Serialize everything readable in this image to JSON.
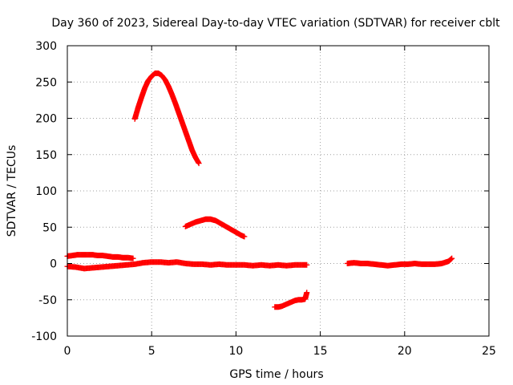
{
  "chart_data": {
    "type": "scatter",
    "title": "Day 360 of 2023, Sidereal Day-to-day VTEC variation (SDTVAR) for receiver cblt",
    "xlabel": "GPS time / hours",
    "ylabel": "SDTVAR / TECUs",
    "xlim": [
      0,
      25
    ],
    "ylim": [
      -100,
      300
    ],
    "xticks": [
      0,
      5,
      10,
      15,
      20,
      25
    ],
    "yticks": [
      -100,
      -50,
      0,
      50,
      100,
      150,
      200,
      250,
      300
    ],
    "grid": true,
    "legend": "none",
    "marker": "+",
    "color": "#ff0000",
    "series": [
      {
        "x": [
          4.0,
          4.2,
          4.4,
          4.6,
          4.8,
          5.0,
          5.2,
          5.4,
          5.6,
          5.8,
          6.0,
          6.2,
          6.4,
          6.6,
          6.8,
          7.0,
          7.2,
          7.4,
          7.6,
          7.8
        ],
        "y": [
          199,
          215,
          229,
          242,
          252,
          258,
          262,
          262,
          259,
          253,
          244,
          233,
          221,
          208,
          195,
          182,
          169,
          156,
          146,
          138
        ]
      },
      {
        "x": [
          7.0,
          7.3,
          7.6,
          7.9,
          8.2,
          8.5,
          8.8,
          9.1,
          9.4,
          9.7,
          10.0,
          10.3,
          10.5
        ],
        "y": [
          51,
          54,
          57,
          59,
          61,
          61,
          59,
          55,
          51,
          47,
          43,
          39,
          37
        ]
      },
      {
        "x": [
          0.0,
          0.3,
          0.6,
          0.9,
          1.2,
          1.5,
          1.8,
          2.1,
          2.4,
          2.7,
          3.0,
          3.3,
          3.6,
          3.9
        ],
        "y": [
          10,
          11,
          12,
          12,
          12,
          12,
          11,
          11,
          10,
          9,
          9,
          8,
          8,
          7
        ]
      },
      {
        "x": [
          0.0,
          0.5,
          1.0,
          1.5,
          2.0,
          2.5,
          3.0,
          3.5,
          4.0,
          4.5,
          5.0,
          5.5,
          6.0,
          6.5,
          7.0,
          7.5,
          8.0,
          8.5,
          9.0,
          9.5,
          10.0,
          10.5,
          11.0,
          11.5,
          12.0,
          12.5,
          13.0,
          13.5,
          14.0,
          14.2
        ],
        "y": [
          -4,
          -5,
          -7,
          -6,
          -5,
          -4,
          -3,
          -2,
          -1,
          1,
          2,
          2,
          1,
          2,
          0,
          -1,
          -1,
          -2,
          -1,
          -2,
          -2,
          -2,
          -3,
          -2,
          -3,
          -2,
          -3,
          -2,
          -2,
          -2
        ]
      },
      {
        "x": [
          12.3,
          12.5,
          12.7,
          12.9,
          13.1,
          13.3,
          13.5,
          13.7,
          13.9,
          14.1,
          14.2
        ],
        "y": [
          -60,
          -60,
          -59,
          -57,
          -55,
          -53,
          -51,
          -50,
          -50,
          -49,
          -40
        ]
      },
      {
        "x": [
          16.6,
          17.0,
          17.4,
          17.8,
          18.2,
          18.6,
          19.0,
          19.4,
          19.8,
          20.2,
          20.6,
          21.0,
          21.4,
          21.8,
          22.2,
          22.6,
          22.8
        ],
        "y": [
          0,
          1,
          0,
          0,
          -1,
          -2,
          -3,
          -2,
          -1,
          -1,
          0,
          -1,
          -1,
          -1,
          0,
          3,
          7
        ]
      }
    ]
  }
}
